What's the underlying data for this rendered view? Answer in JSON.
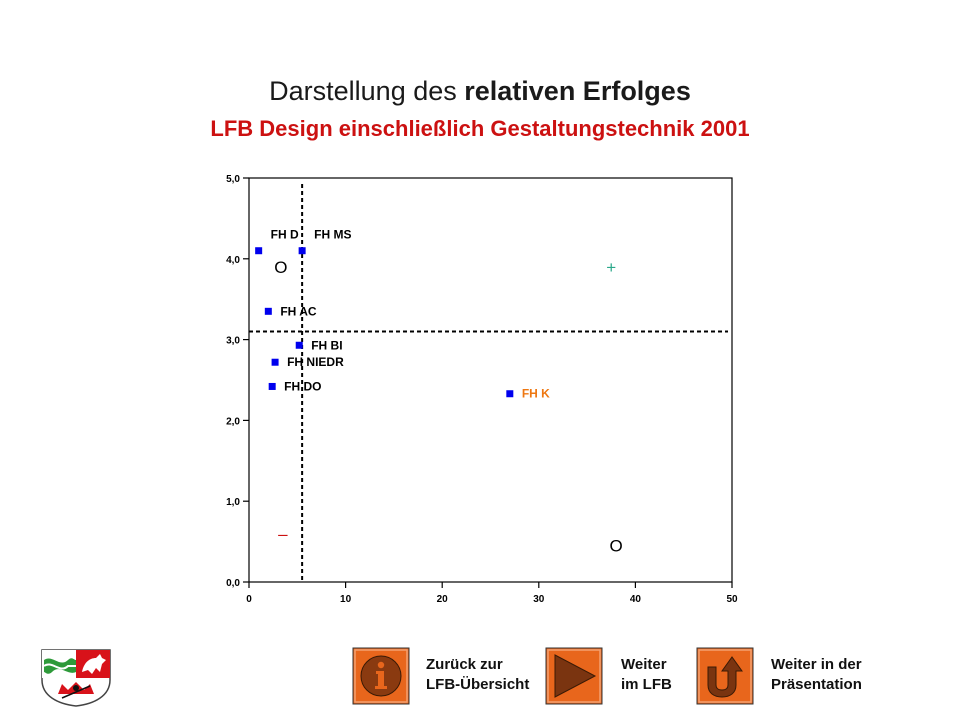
{
  "header": {
    "title_prefix": "Darstellung des ",
    "title_bold": "relativen Erfolges",
    "subtitle": "LFB Design einschließlich Gestaltungstechnik  2001"
  },
  "chart_data": {
    "type": "scatter",
    "xlim": [
      0,
      50
    ],
    "ylim": [
      0,
      5
    ],
    "x_ticks": [
      0,
      10,
      20,
      30,
      40,
      50
    ],
    "x_tick_labels": [
      "0",
      "10",
      "20",
      "30",
      "40",
      "50"
    ],
    "y_ticks": [
      0,
      1,
      2,
      3,
      4,
      5
    ],
    "y_tick_labels": [
      "0,0",
      "1,0",
      "2,0",
      "3,0",
      "4,0",
      "5,0"
    ],
    "grid": false,
    "reference_lines": {
      "x": 5.5,
      "y": 3.1
    },
    "points": [
      {
        "label": "FH D",
        "x": 1.0,
        "y": 4.1,
        "color": "#0000ee",
        "label_color": "#000000"
      },
      {
        "label": "FH MS",
        "x": 5.5,
        "y": 4.1,
        "color": "#0000ee",
        "label_color": "#000000"
      },
      {
        "label": "FH AC",
        "x": 2.0,
        "y": 3.35,
        "color": "#0000ee",
        "label_color": "#000000"
      },
      {
        "label": "FH BI",
        "x": 5.2,
        "y": 2.93,
        "color": "#0000ee",
        "label_color": "#000000"
      },
      {
        "label": "FH NIEDR",
        "x": 2.7,
        "y": 2.72,
        "color": "#0000ee",
        "label_color": "#000000"
      },
      {
        "label": "FH DO",
        "x": 2.4,
        "y": 2.42,
        "color": "#0000ee",
        "label_color": "#000000"
      },
      {
        "label": "FH K",
        "x": 27.0,
        "y": 2.33,
        "color": "#0000ee",
        "label_color": "#ee7711"
      }
    ],
    "quadrant_marks": [
      {
        "text": "O",
        "x": 3.3,
        "y": 3.9,
        "color": "#000000"
      },
      {
        "text": "+",
        "x": 37.5,
        "y": 3.9,
        "color": "#2aa88a"
      },
      {
        "text": "–",
        "x": 3.5,
        "y": 0.6,
        "color": "#cc1111"
      },
      {
        "text": "O",
        "x": 38.0,
        "y": 0.45,
        "color": "#000000"
      }
    ]
  },
  "nav": {
    "back_label_line1": "Zurück zur",
    "back_label_line2": "LFB-Übersicht",
    "next_label_line1": "Weiter",
    "next_label_line2": "im LFB",
    "continue_label_line1": "Weiter in der",
    "continue_label_line2": "Präsentation",
    "button_color": "#e8661c"
  }
}
